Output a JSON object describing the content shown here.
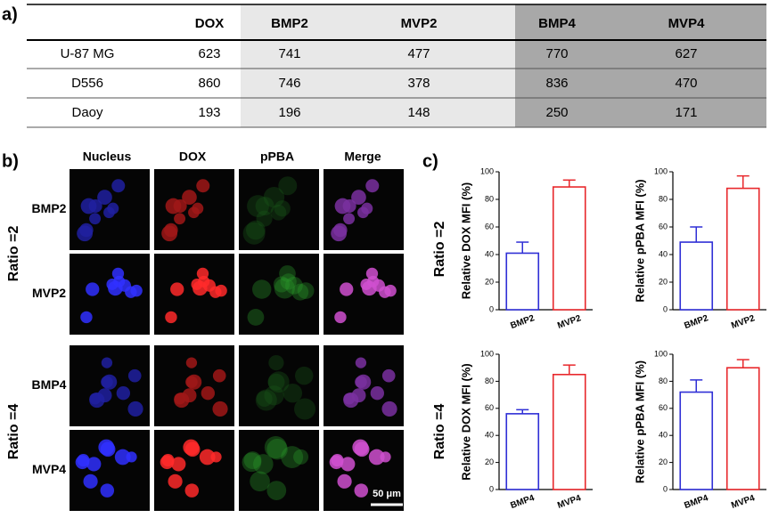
{
  "panel_labels": [
    "a)",
    "b)",
    "c)"
  ],
  "table": {
    "header": [
      "DOX",
      "BMP2",
      "MVP2",
      "BMP4",
      "MVP4"
    ],
    "rows": [
      {
        "label": "U-87 MG",
        "values": [
          623,
          741,
          477,
          770,
          627
        ]
      },
      {
        "label": "D556",
        "values": [
          860,
          746,
          378,
          836,
          470
        ]
      },
      {
        "label": "Daoy",
        "values": [
          193,
          196,
          148,
          250,
          171
        ]
      }
    ]
  },
  "microscopy": {
    "columns": [
      "Nucleus",
      "DOX",
      "pPBA",
      "Merge"
    ],
    "groups": [
      {
        "ratio": "Ratio =2",
        "rows": [
          "BMP2",
          "MVP2"
        ]
      },
      {
        "ratio": "Ratio =4",
        "rows": [
          "BMP4",
          "MVP4"
        ]
      }
    ],
    "scale_bar": "50 μm"
  },
  "chart_data": [
    {
      "type": "bar",
      "ylabel": "Relative DOX MFI (%)",
      "categories": [
        "BMP2",
        "MVP2"
      ],
      "values": [
        41,
        89
      ],
      "errors": [
        8,
        5
      ],
      "colors": [
        "#2f2fd6",
        "#e8282c"
      ],
      "ylim": [
        0,
        100
      ],
      "yticks": [
        0,
        20,
        40,
        60,
        80,
        100
      ]
    },
    {
      "type": "bar",
      "ylabel": "Relative pPBA MFI (%)",
      "categories": [
        "BMP2",
        "MVP2"
      ],
      "values": [
        49,
        88
      ],
      "errors": [
        11,
        9
      ],
      "colors": [
        "#2f2fd6",
        "#e8282c"
      ],
      "ylim": [
        0,
        100
      ],
      "yticks": [
        0,
        20,
        40,
        60,
        80,
        100
      ]
    },
    {
      "type": "bar",
      "ylabel": "Relative DOX MFI (%)",
      "categories": [
        "BMP4",
        "MVP4"
      ],
      "values": [
        56,
        85
      ],
      "errors": [
        3,
        7
      ],
      "colors": [
        "#2f2fd6",
        "#e8282c"
      ],
      "ylim": [
        0,
        100
      ],
      "yticks": [
        0,
        20,
        40,
        60,
        80,
        100
      ]
    },
    {
      "type": "bar",
      "ylabel": "Relative pPBA MFI (%)",
      "categories": [
        "BMP4",
        "MVP4"
      ],
      "values": [
        72,
        90
      ],
      "errors": [
        9,
        6
      ],
      "colors": [
        "#2f2fd6",
        "#e8282c"
      ],
      "ylim": [
        0,
        100
      ],
      "yticks": [
        0,
        20,
        40,
        60,
        80,
        100
      ]
    }
  ]
}
